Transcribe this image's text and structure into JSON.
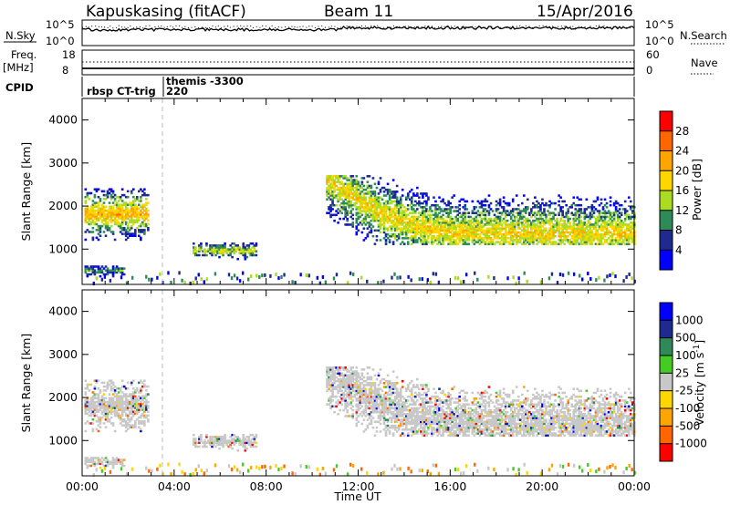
{
  "header": {
    "station": "Kapuskasing (fitACF)",
    "beam": "Beam 11",
    "date": "15/Apr/2016"
  },
  "panels": {
    "nsky_label": "N.Sky",
    "nsky_ticks": [
      "10^5",
      "10^0"
    ],
    "nsearch_label": "N.Search",
    "nsearch_ticks": [
      "10^5",
      "10^0"
    ],
    "freq_label": "Freq.",
    "freq_unit": "[MHz]",
    "freq_ticks": [
      "18",
      "8"
    ],
    "nave_label": "Nave",
    "nave_ticks": [
      "60",
      "0"
    ],
    "cpid_label": "CPID",
    "cpid_entries": [
      {
        "name": "rbsp CT-trig",
        "code": ""
      },
      {
        "name": "themis",
        "code": "-3300"
      },
      {
        "name": "",
        "code": "220"
      }
    ]
  },
  "chart_data": [
    {
      "type": "heatmap",
      "name": "power",
      "ylabel": "Slant Range [km]",
      "colorbar_label": "Power [dB]",
      "colorbar_ticks": [
        "28",
        "24",
        "20",
        "16",
        "12",
        "8",
        "4"
      ],
      "colorbar_colors": [
        "#ff0000",
        "#ff6600",
        "#ffa500",
        "#ffd700",
        "#aadd22",
        "#2e8b57",
        "#1e2a90",
        "#0000ff"
      ],
      "x_ticks": [
        "00:00",
        "04:00",
        "08:00",
        "12:00",
        "16:00",
        "20:00",
        "00:00"
      ],
      "y_ticks": [
        4000,
        3000,
        2000,
        1000
      ],
      "ylim": [
        180,
        4500
      ],
      "xlim_hours": [
        0,
        24
      ],
      "echo_regions": [
        {
          "t0": 0.1,
          "t1": 2.9,
          "r0": 1200,
          "r1": 2400,
          "level": 0.7
        },
        {
          "t0": 0.1,
          "t1": 1.8,
          "r0": 350,
          "r1": 600,
          "level": 0.3
        },
        {
          "t0": 4.8,
          "t1": 7.6,
          "r0": 750,
          "r1": 1150,
          "level": 0.5
        },
        {
          "t0": 10.6,
          "t1": 24.0,
          "r0": 1100,
          "r1": 2700,
          "level": 0.6
        }
      ]
    },
    {
      "type": "heatmap",
      "name": "velocity",
      "ylabel": "Slant Range [km]",
      "colorbar_label": "Velocity [m s^-1]",
      "colorbar_ticks": [
        "1000",
        "500",
        "100",
        "25",
        "-25",
        "-100",
        "-500",
        "-1000"
      ],
      "colorbar_colors": [
        "#0000ff",
        "#1e2a90",
        "#2e8b57",
        "#44cc22",
        "#c8c8c8",
        "#ffd700",
        "#ffa500",
        "#ff6600",
        "#ff0000"
      ],
      "x_ticks": [
        "00:00",
        "04:00",
        "08:00",
        "12:00",
        "16:00",
        "20:00",
        "00:00"
      ],
      "y_ticks": [
        4000,
        3000,
        2000,
        1000
      ],
      "ylim": [
        180,
        4500
      ],
      "xlim_hours": [
        0,
        24
      ]
    }
  ],
  "xaxis_label": "Time UT"
}
